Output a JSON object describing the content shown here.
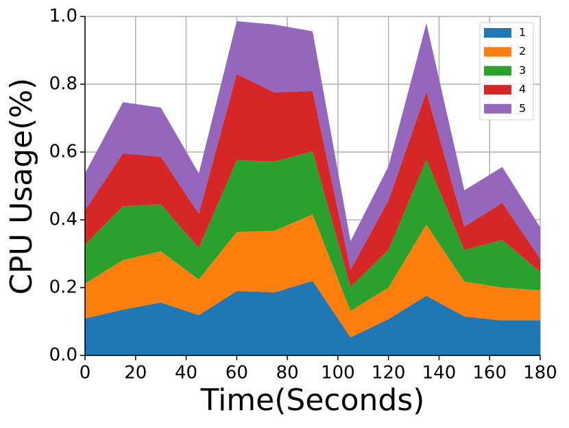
{
  "chart_data": {
    "type": "stacked_area",
    "xlabel": "Time(Seconds)",
    "ylabel": "CPU Usage(%)",
    "x": [
      0,
      15,
      30,
      45,
      60,
      75,
      90,
      105,
      120,
      135,
      150,
      165,
      180
    ],
    "series": [
      {
        "name": "1",
        "color": "#1f77b4",
        "values": [
          0.109,
          0.135,
          0.156,
          0.119,
          0.19,
          0.186,
          0.22,
          0.053,
          0.107,
          0.176,
          0.115,
          0.103,
          0.103
        ]
      },
      {
        "name": "2",
        "color": "#ff7f0e",
        "values": [
          0.103,
          0.146,
          0.151,
          0.105,
          0.174,
          0.182,
          0.196,
          0.078,
          0.093,
          0.21,
          0.103,
          0.097,
          0.089
        ]
      },
      {
        "name": "3",
        "color": "#2ca02c",
        "values": [
          0.115,
          0.159,
          0.139,
          0.093,
          0.212,
          0.204,
          0.186,
          0.071,
          0.111,
          0.192,
          0.093,
          0.141,
          0.054
        ]
      },
      {
        "name": "4",
        "color": "#d62728",
        "values": [
          0.101,
          0.156,
          0.14,
          0.101,
          0.254,
          0.204,
          0.178,
          0.051,
          0.146,
          0.2,
          0.069,
          0.109,
          0.039
        ]
      },
      {
        "name": "5",
        "color": "#9467bd",
        "values": [
          0.109,
          0.151,
          0.145,
          0.119,
          0.156,
          0.2,
          0.176,
          0.084,
          0.101,
          0.202,
          0.107,
          0.106,
          0.093
        ]
      }
    ],
    "xlim": [
      0,
      180
    ],
    "ylim": [
      0,
      1
    ],
    "xticks": [
      0,
      20,
      40,
      60,
      80,
      100,
      120,
      140,
      160,
      180
    ],
    "yticks": [
      {
        "value": 0,
        "label": "0.0"
      },
      0.2,
      0.4,
      0.6,
      0.8,
      {
        "value": 1,
        "label": "1.0"
      }
    ],
    "grid": true,
    "legend": "upper-right"
  }
}
